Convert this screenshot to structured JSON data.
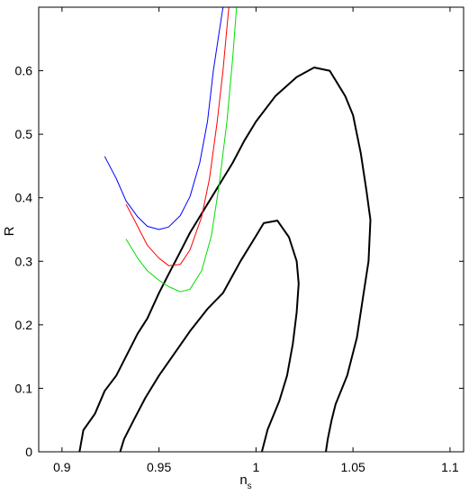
{
  "chart_data": {
    "type": "line",
    "xlabel": "n",
    "xlabel_subscript": "s",
    "ylabel": "R",
    "xlim": [
      0.888,
      1.107
    ],
    "ylim": [
      0,
      0.7
    ],
    "x_ticks": [
      0.9,
      0.95,
      1,
      1.05,
      1.1
    ],
    "x_tick_labels": [
      "0.9",
      "0.95",
      "1",
      "1.05",
      "1.1"
    ],
    "y_ticks": [
      0,
      0.1,
      0.2,
      0.3,
      0.4,
      0.5,
      0.6
    ],
    "y_tick_labels": [
      "0",
      "0.1",
      "0.2",
      "0.3",
      "0.4",
      "0.5",
      "0.6"
    ],
    "grid": false,
    "legend": "none",
    "series": [
      {
        "color": "#000000",
        "style": "contour",
        "points": [
          [
            0.909,
            0
          ],
          [
            0.911,
            0.034
          ],
          [
            0.917,
            0.06
          ],
          [
            0.922,
            0.096
          ],
          [
            0.928,
            0.12
          ],
          [
            0.933,
            0.15
          ],
          [
            0.939,
            0.186
          ],
          [
            0.944,
            0.21
          ],
          [
            0.95,
            0.25
          ],
          [
            0.955,
            0.28
          ],
          [
            0.961,
            0.315
          ],
          [
            0.966,
            0.345
          ],
          [
            0.972,
            0.375
          ],
          [
            0.977,
            0.4
          ],
          [
            0.983,
            0.43
          ],
          [
            0.988,
            0.455
          ],
          [
            0.994,
            0.49
          ],
          [
            1.0,
            0.52
          ],
          [
            1.01,
            0.56
          ],
          [
            1.021,
            0.59
          ],
          [
            1.03,
            0.605
          ],
          [
            1.038,
            0.6
          ],
          [
            1.046,
            0.56
          ],
          [
            1.05,
            0.53
          ],
          [
            1.054,
            0.47
          ],
          [
            1.057,
            0.41
          ],
          [
            1.059,
            0.365
          ],
          [
            1.058,
            0.3
          ],
          [
            1.055,
            0.24
          ],
          [
            1.052,
            0.18
          ],
          [
            1.047,
            0.12
          ],
          [
            1.041,
            0.075
          ],
          [
            1.039,
            0.05
          ],
          [
            1.037,
            0.02
          ],
          [
            1.036,
            0
          ]
        ]
      },
      {
        "color": "#000000",
        "style": "contour",
        "points": [
          [
            0.93,
            0
          ],
          [
            0.932,
            0.02
          ],
          [
            0.937,
            0.05
          ],
          [
            0.943,
            0.085
          ],
          [
            0.95,
            0.12
          ],
          [
            0.958,
            0.155
          ],
          [
            0.966,
            0.19
          ],
          [
            0.975,
            0.225
          ],
          [
            0.983,
            0.25
          ],
          [
            0.992,
            0.3
          ],
          [
            1.0,
            0.34
          ],
          [
            1.004,
            0.36
          ],
          [
            1.011,
            0.364
          ],
          [
            1.017,
            0.338
          ],
          [
            1.021,
            0.3
          ],
          [
            1.022,
            0.265
          ],
          [
            1.021,
            0.22
          ],
          [
            1.019,
            0.17
          ],
          [
            1.016,
            0.12
          ],
          [
            1.012,
            0.08
          ],
          [
            1.006,
            0.035
          ],
          [
            1.003,
            0
          ]
        ]
      },
      {
        "color": "#0000ff",
        "style": "line",
        "points": [
          [
            0.922,
            0.465
          ],
          [
            0.928,
            0.43
          ],
          [
            0.933,
            0.395
          ],
          [
            0.939,
            0.37
          ],
          [
            0.944,
            0.355
          ],
          [
            0.95,
            0.35
          ],
          [
            0.955,
            0.354
          ],
          [
            0.961,
            0.372
          ],
          [
            0.966,
            0.402
          ],
          [
            0.971,
            0.455
          ],
          [
            0.975,
            0.52
          ],
          [
            0.978,
            0.6
          ],
          [
            0.981,
            0.66
          ],
          [
            0.983,
            0.7
          ]
        ]
      },
      {
        "color": "#ff0000",
        "style": "line",
        "points": [
          [
            0.933,
            0.39
          ],
          [
            0.939,
            0.355
          ],
          [
            0.944,
            0.325
          ],
          [
            0.95,
            0.305
          ],
          [
            0.955,
            0.293
          ],
          [
            0.961,
            0.295
          ],
          [
            0.966,
            0.318
          ],
          [
            0.972,
            0.37
          ],
          [
            0.976,
            0.43
          ],
          [
            0.98,
            0.52
          ],
          [
            0.983,
            0.6
          ],
          [
            0.986,
            0.7
          ]
        ]
      },
      {
        "color": "#00dd00",
        "style": "line",
        "points": [
          [
            0.933,
            0.335
          ],
          [
            0.939,
            0.305
          ],
          [
            0.944,
            0.285
          ],
          [
            0.95,
            0.27
          ],
          [
            0.955,
            0.26
          ],
          [
            0.961,
            0.252
          ],
          [
            0.966,
            0.256
          ],
          [
            0.972,
            0.285
          ],
          [
            0.977,
            0.34
          ],
          [
            0.981,
            0.42
          ],
          [
            0.985,
            0.52
          ],
          [
            0.988,
            0.62
          ],
          [
            0.99,
            0.7
          ]
        ]
      }
    ]
  }
}
